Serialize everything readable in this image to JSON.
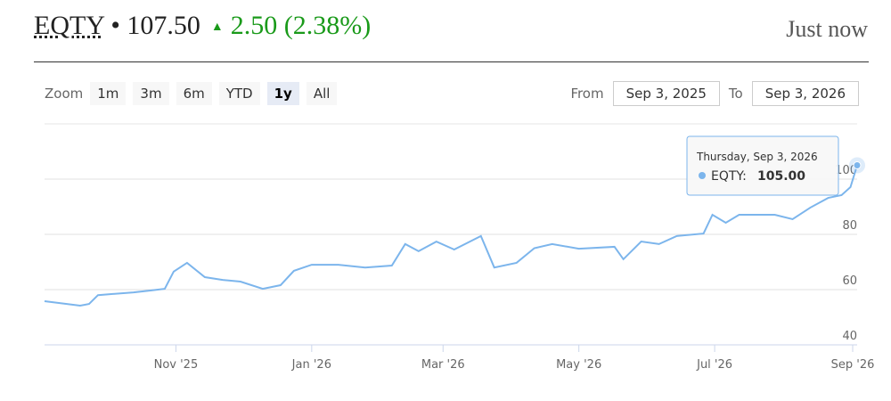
{
  "header": {
    "ticker": "EQTY",
    "price": "107.50",
    "change": "2.50",
    "change_pct": "(2.38%)",
    "updated": "Just now"
  },
  "toolbar": {
    "zoom_label": "Zoom",
    "ranges": [
      "1m",
      "3m",
      "6m",
      "YTD",
      "1y",
      "All"
    ],
    "selected_range": 4,
    "from_label": "From",
    "from": "Sep 3, 2025",
    "to_label": "To",
    "to": "Sep 3, 2026"
  },
  "tooltip": {
    "date": "Thursday, Sep 3, 2026",
    "label": "EQTY:",
    "value": "105.00"
  },
  "chart_data": {
    "type": "line",
    "x": [
      "2025-09-03",
      "2025-09-19",
      "2025-09-23",
      "2025-09-27",
      "2025-10-13",
      "2025-10-21",
      "2025-10-27",
      "2025-10-31",
      "2025-11-06",
      "2025-11-14",
      "2025-11-22",
      "2025-11-30",
      "2025-12-10",
      "2025-12-18",
      "2025-12-24",
      "2026-01-01",
      "2026-01-13",
      "2026-01-25",
      "2026-02-06",
      "2026-02-12",
      "2026-02-18",
      "2026-02-26",
      "2026-03-06",
      "2026-03-18",
      "2026-03-24",
      "2026-04-03",
      "2026-04-11",
      "2026-04-19",
      "2026-05-01",
      "2026-05-17",
      "2026-05-21",
      "2026-05-29",
      "2026-06-06",
      "2026-06-14",
      "2026-06-26",
      "2026-06-30",
      "2026-07-06",
      "2026-07-12",
      "2026-07-28",
      "2026-08-05",
      "2026-08-13",
      "2026-08-21",
      "2026-08-27",
      "2026-08-31",
      "2026-09-03"
    ],
    "series": [
      {
        "name": "EQTY",
        "color": "#7cb5ec",
        "values": [
          55.8,
          54.2,
          54.8,
          58,
          59,
          59.7,
          60.3,
          66.5,
          69.7,
          64.5,
          63.5,
          62.9,
          60.3,
          61.6,
          66.8,
          69,
          69,
          68,
          68.7,
          76.5,
          73.9,
          77.4,
          74.5,
          79.4,
          68,
          69.7,
          75,
          76.5,
          74.8,
          75.5,
          71,
          77.4,
          76.5,
          79.4,
          80.3,
          87.1,
          84.2,
          87.1,
          87.1,
          85.5,
          89.7,
          93.2,
          94.2,
          97.1,
          105
        ]
      }
    ],
    "xlim": [
      "2025-09-03",
      "2026-09-03"
    ],
    "xticks": [
      {
        "value": "2025-11-01",
        "label": "Nov '25"
      },
      {
        "value": "2026-01-01",
        "label": "Jan '26"
      },
      {
        "value": "2026-03-01",
        "label": "Mar '26"
      },
      {
        "value": "2026-05-01",
        "label": "May '26"
      },
      {
        "value": "2026-07-01",
        "label": "Jul '26"
      },
      {
        "value": "2026-09-01",
        "label": "Sep '26"
      }
    ],
    "ylim": [
      40,
      120
    ],
    "yticks": [
      40,
      60,
      80,
      100
    ],
    "grid": true
  }
}
